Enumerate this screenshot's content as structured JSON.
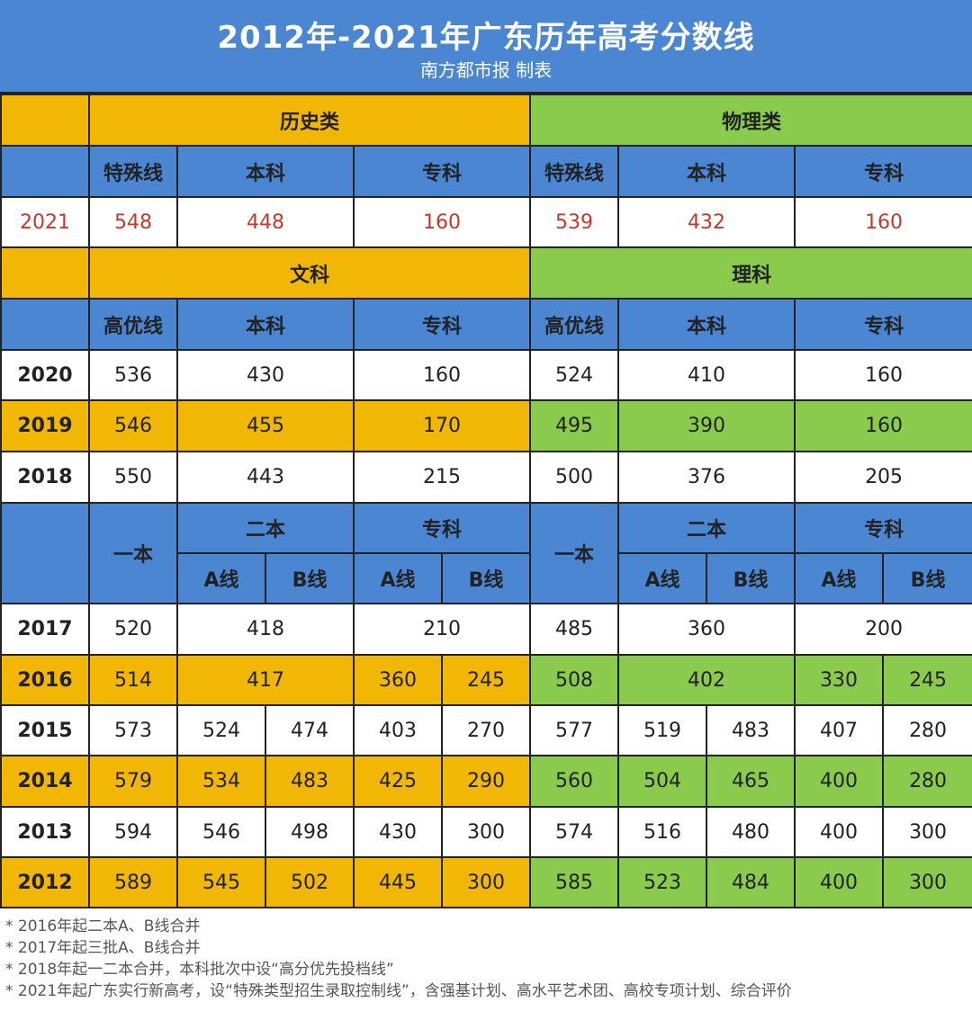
{
  "title": "2012年-2021年广东历年高考分数线",
  "subtitle": "南方都市报 制表",
  "section2021": {
    "left": "历史类",
    "right": "物理类",
    "cols": [
      "特殊线",
      "本科",
      "专科",
      "特殊线",
      "本科",
      "专科"
    ],
    "year": "2021",
    "values": [
      "548",
      "448",
      "160",
      "539",
      "432",
      "160"
    ]
  },
  "section2018": {
    "left": "文科",
    "right": "理科",
    "cols": [
      "高优线",
      "本科",
      "专科",
      "高优线",
      "本科",
      "专科"
    ],
    "rows": [
      {
        "year": "2020",
        "values": [
          "536",
          "430",
          "160",
          "524",
          "410",
          "160"
        ]
      },
      {
        "year": "2019",
        "values": [
          "546",
          "455",
          "170",
          "495",
          "390",
          "160"
        ]
      },
      {
        "year": "2018",
        "values": [
          "550",
          "443",
          "215",
          "500",
          "376",
          "205"
        ]
      }
    ]
  },
  "section2012": {
    "yiben": "一本",
    "erben": "二本",
    "zhuanke": "专科",
    "aline": "A线",
    "bline": "B线",
    "rows": [
      {
        "year": "2017",
        "values": [
          "520",
          "418",
          "210",
          "485",
          "360",
          "200"
        ]
      },
      {
        "year": "2016",
        "values": [
          "514",
          "417",
          "360",
          "245",
          "508",
          "402",
          "330",
          "245"
        ]
      },
      {
        "year": "2015",
        "values": [
          "573",
          "524",
          "474",
          "403",
          "270",
          "577",
          "519",
          "483",
          "407",
          "280"
        ]
      },
      {
        "year": "2014",
        "values": [
          "579",
          "534",
          "483",
          "425",
          "290",
          "560",
          "504",
          "465",
          "400",
          "280"
        ]
      },
      {
        "year": "2013",
        "values": [
          "594",
          "546",
          "498",
          "430",
          "300",
          "574",
          "516",
          "480",
          "400",
          "300"
        ]
      },
      {
        "year": "2012",
        "values": [
          "589",
          "545",
          "502",
          "445",
          "300",
          "585",
          "523",
          "484",
          "400",
          "300"
        ]
      }
    ]
  },
  "notes": [
    "* 2016年起二本A、B线合并",
    "* 2017年起三批A、B线合并",
    "* 2018年起一二本合并，本科批次中设“高分优先投档线”",
    "* 2021年起广东实行新高考，设“特殊类型招生录取控制线”，含强基计划、高水平艺术团、高校专项计划、综合评价"
  ]
}
